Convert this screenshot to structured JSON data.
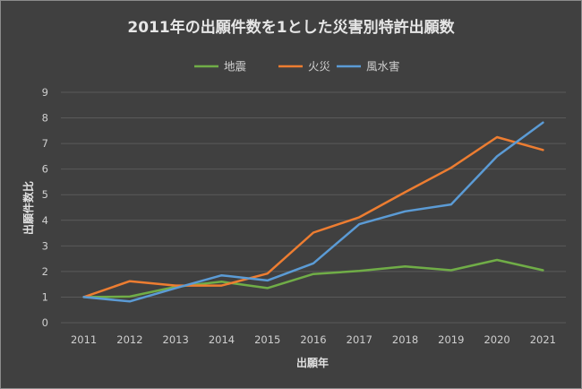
{
  "chart_data": {
    "type": "line",
    "title": "2011年の出願件数を1とした災害別特許出願数",
    "xlabel": "出願年",
    "ylabel": "出願件数比",
    "x": [
      "2011",
      "2012",
      "2013",
      "2014",
      "2015",
      "2016",
      "2017",
      "2018",
      "2019",
      "2020",
      "2021"
    ],
    "ylim": [
      0,
      9
    ],
    "yticks": [
      "0",
      "1",
      "2",
      "3",
      "4",
      "5",
      "6",
      "7",
      "8",
      "9"
    ],
    "grid": true,
    "legend_position": "top",
    "series": [
      {
        "name": "地震",
        "color": "#70ad47",
        "values": [
          1.0,
          1.02,
          1.4,
          1.6,
          1.35,
          1.9,
          2.02,
          2.2,
          2.05,
          2.45,
          2.05
        ]
      },
      {
        "name": "火災",
        "color": "#ed7d31",
        "values": [
          1.0,
          1.62,
          1.45,
          1.45,
          1.92,
          3.52,
          4.12,
          5.1,
          6.05,
          7.25,
          6.75
        ]
      },
      {
        "name": "風水害",
        "color": "#5b9bd5",
        "values": [
          1.0,
          0.83,
          1.35,
          1.85,
          1.65,
          2.32,
          3.85,
          4.35,
          4.62,
          6.5,
          7.82
        ]
      }
    ]
  }
}
